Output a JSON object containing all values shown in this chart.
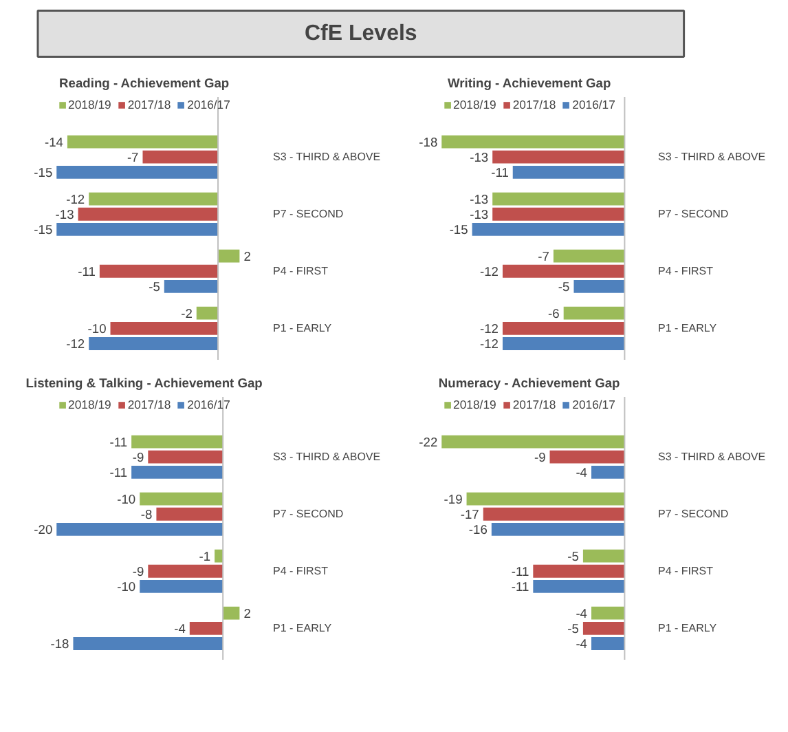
{
  "chart_data": [
    {
      "type": "other",
      "title": "CfE Levels"
    },
    {
      "type": "bar",
      "orientation": "horizontal",
      "title": "Reading - Achievement Gap",
      "categories": [
        "S3 - THIRD & ABOVE",
        "P7 - SECOND",
        "P4 - FIRST",
        "P1 - EARLY"
      ],
      "data_labels": true,
      "legend": "top",
      "grid": false,
      "tick_labels": "y",
      "series": [
        {
          "name": "2018/19",
          "color": "#9bbb59",
          "values": [
            -14,
            -12,
            2,
            -2
          ]
        },
        {
          "name": "2017/18",
          "color": "#c0504d",
          "values": [
            -7,
            -13,
            -11,
            -10
          ]
        },
        {
          "name": "2016/17",
          "color": "#4f81bd",
          "values": [
            -15,
            -15,
            -5,
            -12
          ]
        }
      ]
    },
    {
      "type": "bar",
      "orientation": "horizontal",
      "title": "Writing - Achievement Gap",
      "categories": [
        "S3 - THIRD & ABOVE",
        "P7 - SECOND",
        "P4 - FIRST",
        "P1 - EARLY"
      ],
      "data_labels": true,
      "legend": "top",
      "grid": false,
      "tick_labels": "y",
      "series": [
        {
          "name": "2018/19",
          "color": "#9bbb59",
          "values": [
            -18,
            -13,
            -7,
            -6
          ]
        },
        {
          "name": "2017/18",
          "color": "#c0504d",
          "values": [
            -13,
            -13,
            -12,
            -12
          ]
        },
        {
          "name": "2016/17",
          "color": "#4f81bd",
          "values": [
            -11,
            -15,
            -5,
            -12
          ]
        }
      ]
    },
    {
      "type": "bar",
      "orientation": "horizontal",
      "title": "Listening & Talking - Achievement Gap",
      "categories": [
        "S3 - THIRD & ABOVE",
        "P7 - SECOND",
        "P4 - FIRST",
        "P1 - EARLY"
      ],
      "data_labels": true,
      "legend": "top",
      "grid": false,
      "tick_labels": "y",
      "series": [
        {
          "name": "2018/19",
          "color": "#9bbb59",
          "values": [
            -11,
            -10,
            -1,
            2
          ]
        },
        {
          "name": "2017/18",
          "color": "#c0504d",
          "values": [
            -9,
            -8,
            -9,
            -4
          ]
        },
        {
          "name": "2016/17",
          "color": "#4f81bd",
          "values": [
            -11,
            -20,
            -10,
            -18
          ]
        }
      ]
    },
    {
      "type": "bar",
      "orientation": "horizontal",
      "title": "Numeracy - Achievement Gap",
      "categories": [
        "S3 - THIRD & ABOVE",
        "P7 - SECOND",
        "P4 - FIRST",
        "P1 - EARLY"
      ],
      "data_labels": true,
      "legend": "top",
      "grid": false,
      "tick_labels": "y",
      "series": [
        {
          "name": "2018/19",
          "color": "#9bbb59",
          "values": [
            -22,
            -19,
            -5,
            -4
          ]
        },
        {
          "name": "2017/18",
          "color": "#c0504d",
          "values": [
            -9,
            -17,
            -11,
            -5
          ]
        },
        {
          "name": "2016/17",
          "color": "#4f81bd",
          "values": [
            -4,
            -16,
            -11,
            -4
          ]
        }
      ]
    }
  ]
}
